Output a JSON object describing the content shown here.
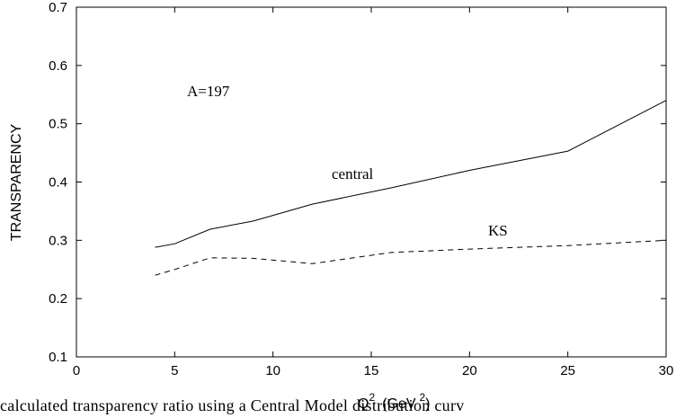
{
  "chart_data": {
    "type": "line",
    "title": "",
    "xlabel": "Q",
    "xlabel_sup": "2",
    "xlabel_unit": "(GeV",
    "xlabel_unit_sup": "2",
    "xlabel_unit_close": ")",
    "ylabel": "TRANSPARENCY",
    "xlim": [
      0,
      30
    ],
    "ylim": [
      0.1,
      0.7
    ],
    "xticks": [
      0,
      5,
      10,
      15,
      20,
      25,
      30
    ],
    "yticks": [
      0.1,
      0.2,
      0.3,
      0.4,
      0.5,
      0.6,
      0.7
    ],
    "ytick_labels": [
      "0.1",
      "0.2",
      "0.3",
      "0.4",
      "0.5",
      "0.6",
      "0.7"
    ],
    "grid": false,
    "annotations": {
      "nucleus": "A=197",
      "central": "central",
      "ks": "KS"
    },
    "series": [
      {
        "name": "central",
        "style": "solid",
        "x": [
          4,
          5,
          6.8,
          9,
          12,
          16,
          20,
          25,
          30
        ],
        "y": [
          0.288,
          0.294,
          0.319,
          0.333,
          0.362,
          0.39,
          0.42,
          0.453,
          0.54
        ]
      },
      {
        "name": "KS",
        "style": "dashed",
        "x": [
          4,
          5,
          6.8,
          9,
          12,
          16,
          20,
          25,
          30
        ],
        "y": [
          0.24,
          0.25,
          0.27,
          0.269,
          0.26,
          0.279,
          0.285,
          0.291,
          0.3
        ]
      }
    ]
  },
  "caption": "calculated transparency ratio using a Central Model distribution curv"
}
